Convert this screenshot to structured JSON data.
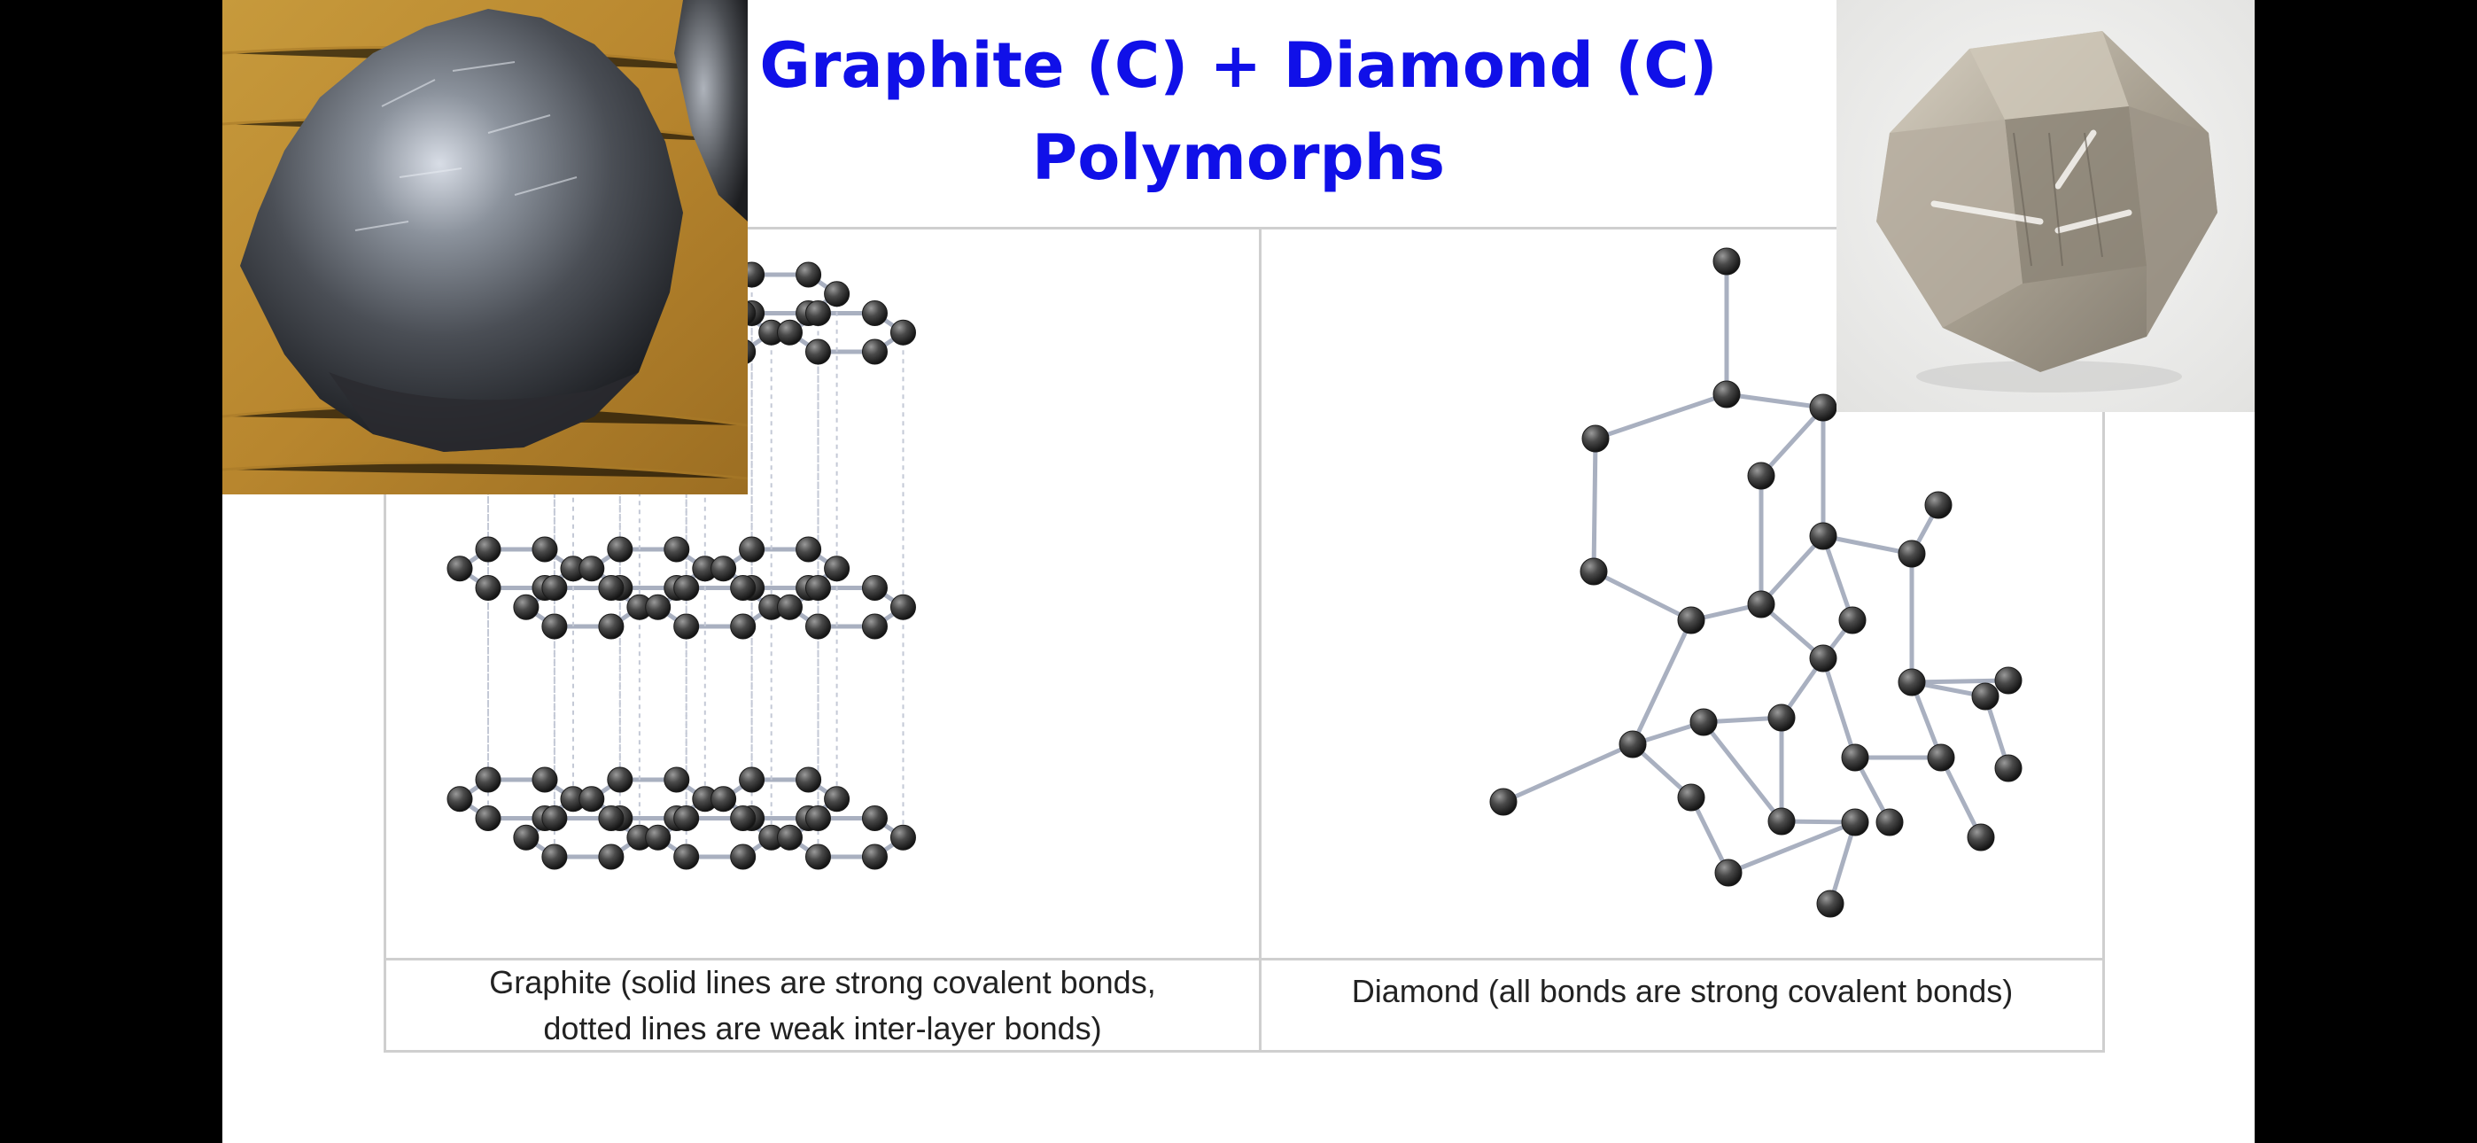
{
  "slide": {
    "title_line1": "Graphite (C) + Diamond (C)",
    "title_line2": "Polymorphs"
  },
  "table": {
    "graphite_caption_line1": "Graphite (solid lines are strong covalent bonds,",
    "graphite_caption_line2": "dotted lines are weak inter-layer bonds)",
    "diamond_caption": "Diamond (all bonds are strong covalent bonds)"
  },
  "colors": {
    "title": "#1010e8",
    "bond": "#a9b0c0",
    "atom": "#2a2a2a",
    "background": "#000000",
    "slide": "#ffffff"
  }
}
